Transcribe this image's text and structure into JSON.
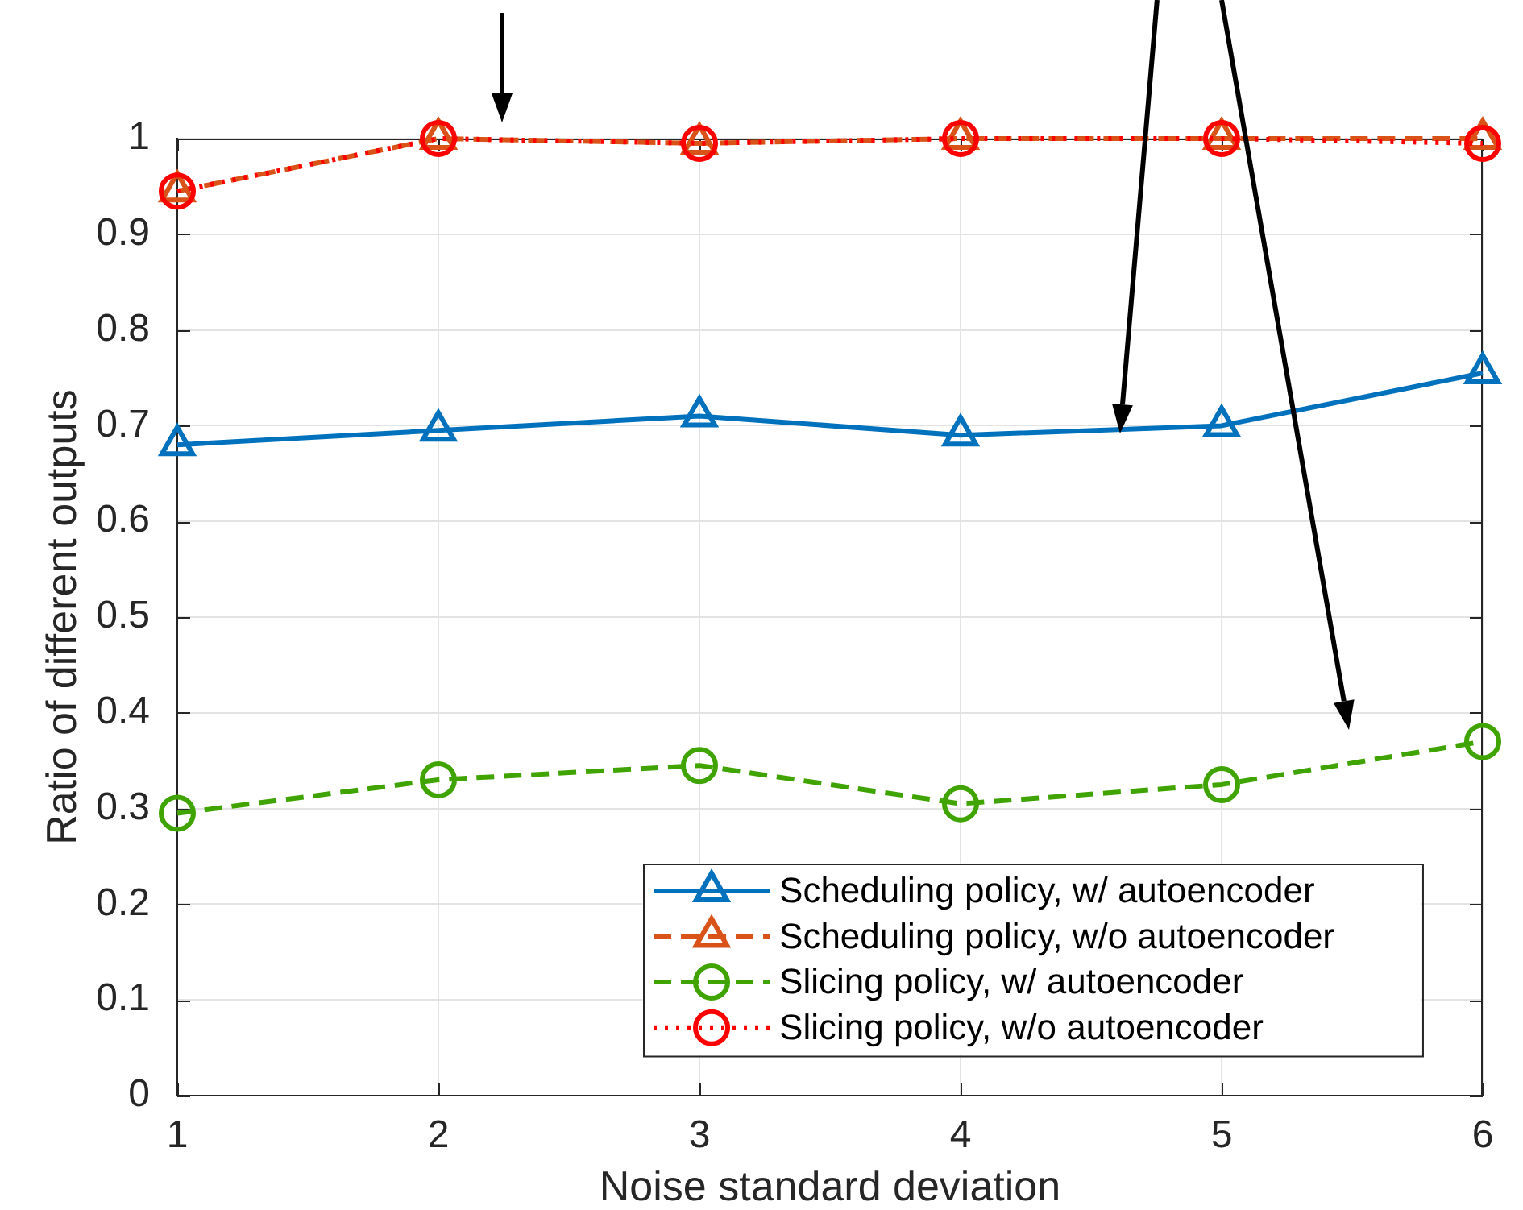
{
  "chart_data": {
    "type": "line",
    "xlabel": "Noise standard deviation",
    "ylabel": "Ratio of different outputs",
    "x": [
      1,
      2,
      3,
      4,
      5,
      6
    ],
    "series": [
      {
        "name": "Scheduling policy, w/ autoencoder",
        "color": "#0072bd",
        "marker": "triangle",
        "line_style": "solid",
        "values": [
          0.68,
          0.695,
          0.71,
          0.69,
          0.7,
          0.755
        ]
      },
      {
        "name": "Scheduling policy, w/o autoencoder",
        "color": "#d95319",
        "marker": "triangle",
        "line_style": "dashed",
        "values": [
          0.945,
          1,
          0.995,
          1,
          1,
          1
        ]
      },
      {
        "name": "Slicing policy, w/ autoencoder",
        "color": "#3fa300",
        "marker": "circle",
        "line_style": "dashed",
        "values": [
          0.295,
          0.33,
          0.345,
          0.305,
          0.325,
          0.37
        ]
      },
      {
        "name": "Slicing policy, w/o autoencoder",
        "color": "#ff0000",
        "marker": "circle",
        "line_style": "dotted",
        "values": [
          0.945,
          1,
          0.995,
          1,
          1,
          0.995
        ]
      }
    ],
    "xlim": [
      1,
      6
    ],
    "xticks": [
      1,
      2,
      3,
      4,
      5,
      6
    ],
    "ylim": [
      0,
      1
    ],
    "yticks": [
      0,
      0.1,
      0.2,
      0.3,
      0.4,
      0.5,
      0.6,
      0.7,
      0.8,
      0.9,
      1
    ],
    "grid": true,
    "legend": "bottom right"
  }
}
